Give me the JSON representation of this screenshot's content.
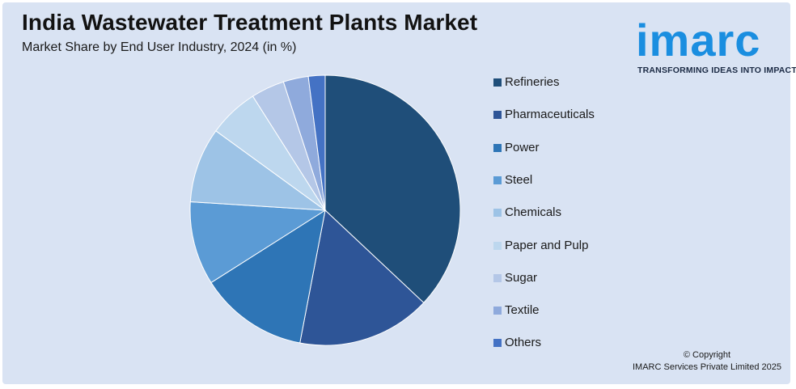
{
  "header": {
    "title": "India Wastewater Treatment Plants Market",
    "subtitle": "Market Share by End User Industry, 2024 (in %)"
  },
  "logo": {
    "wordmark": "imarc",
    "tagline": "TRANSFORMING IDEAS INTO IMPACT",
    "color": "#1a8ee0"
  },
  "chart_data": {
    "type": "pie",
    "title": "India Wastewater Treatment Plants Market",
    "subtitle": "Market Share by End User Industry, 2024 (in %)",
    "legend_position": "right",
    "slices": [
      {
        "name": "Refineries",
        "value": 37,
        "color": "#1f4e79"
      },
      {
        "name": "Pharmaceuticals",
        "value": 16,
        "color": "#2e5597"
      },
      {
        "name": "Power",
        "value": 13,
        "color": "#2e75b6"
      },
      {
        "name": "Steel",
        "value": 10,
        "color": "#5b9bd5"
      },
      {
        "name": "Chemicals",
        "value": 9,
        "color": "#9dc3e6"
      },
      {
        "name": "Paper and Pulp",
        "value": 6,
        "color": "#bdd7ee"
      },
      {
        "name": "Sugar",
        "value": 4,
        "color": "#b4c7e7"
      },
      {
        "name": "Textile",
        "value": 3,
        "color": "#8faadc"
      },
      {
        "name": "Others",
        "value": 2,
        "color": "#4472c4"
      }
    ]
  },
  "footer": {
    "copyright_line1": "© Copyright",
    "copyright_line2": "IMARC Services Private Limited 2025"
  }
}
